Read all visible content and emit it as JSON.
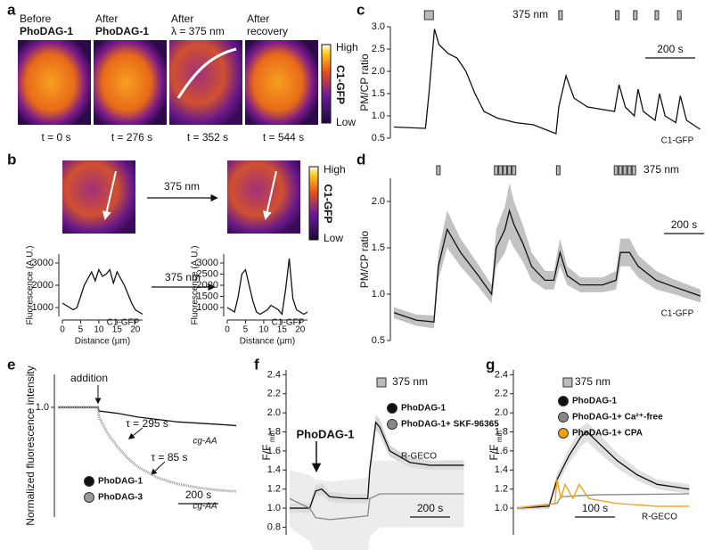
{
  "panel_letters": [
    "a",
    "b",
    "c",
    "d",
    "e",
    "f",
    "g"
  ],
  "panel_a": {
    "captions": [
      [
        "Before",
        "PhoDAG-1"
      ],
      [
        "After",
        "PhoDAG-1"
      ],
      [
        "After",
        "λ = 375 nm"
      ],
      [
        "After",
        "recovery"
      ]
    ],
    "times": [
      "t = 0 s",
      "t = 276 s",
      "t = 352 s",
      "t = 544 s"
    ],
    "colorbar": {
      "high": "High",
      "label": "C1-GFP",
      "low": "Low"
    }
  },
  "panel_b": {
    "arrow_label": "375 nm",
    "colorbar": {
      "high": "High",
      "label": "C1-GFP",
      "low": "Low"
    }
  },
  "chart_data": [
    {
      "type": "line",
      "ylabel": "Fluorescence (A.U.)",
      "xlabel": "Distance (µm)",
      "xlim": [
        0,
        22
      ],
      "xticks": [
        0,
        5,
        10,
        15,
        20
      ],
      "ylim": [
        600,
        3400
      ],
      "yticks": [
        1000,
        2000,
        3000
      ],
      "annotations": [
        "C1-GFP"
      ],
      "series": [
        {
          "color": "#111111",
          "x": [
            0,
            1,
            2,
            3,
            4,
            5,
            6,
            7,
            8,
            9,
            10,
            11,
            12,
            13,
            14,
            15,
            16,
            17,
            18,
            19,
            20,
            21,
            22
          ],
          "values": [
            1200,
            1100,
            1000,
            900,
            1000,
            1500,
            2000,
            2300,
            2600,
            2200,
            2700,
            2400,
            2500,
            2700,
            2100,
            2600,
            2300,
            2000,
            1600,
            1200,
            900,
            800,
            700
          ]
        }
      ]
    },
    {
      "type": "line",
      "ylabel": "Fluorescence (A.U.)",
      "xlabel": "Distance (µm)",
      "xlim": [
        0,
        22
      ],
      "xticks": [
        0,
        5,
        10,
        15,
        20
      ],
      "ylim": [
        600,
        3400
      ],
      "yticks": [
        1000,
        1500,
        2000,
        2500,
        3000
      ],
      "annotations": [
        "C1-GFP"
      ],
      "series": [
        {
          "color": "#111111",
          "x": [
            0,
            1,
            2,
            3,
            4,
            5,
            6,
            7,
            8,
            9,
            10,
            11,
            12,
            13,
            14,
            15,
            16,
            17,
            18,
            19,
            20,
            21,
            22
          ],
          "values": [
            1000,
            900,
            800,
            1500,
            2500,
            2700,
            2000,
            1300,
            800,
            700,
            800,
            900,
            1100,
            1000,
            900,
            700,
            1800,
            3200,
            1400,
            900,
            800,
            700,
            800
          ]
        }
      ]
    },
    {
      "type": "line",
      "ylabel": "PM/CP ratio",
      "xlim": [
        0,
        1240
      ],
      "ylim": [
        0.5,
        3.0
      ],
      "yticks": [
        {
          "value": 3.0,
          "label": "3.0"
        },
        2.5,
        {
          "value": 2.0,
          "label": "2.0"
        },
        1.5,
        {
          "value": 1.0,
          "label": "1.0"
        },
        0.5
      ],
      "stimuli": {
        "label": "375 nm",
        "x": [
          140,
          666,
          893,
          965,
          1051,
          1141
        ]
      },
      "scale_bar": {
        "value": 200,
        "label": "200 s"
      },
      "annotations": [
        "C1-GFP"
      ],
      "series": [
        {
          "color": "#111111",
          "x": [
            0,
            126,
            140,
            162,
            180,
            216,
            252,
            288,
            324,
            360,
            414,
            486,
            558,
            648,
            659,
            688,
            720,
            774,
            882,
            900,
            925,
            961,
            976,
            997,
            1044,
            1062,
            1084,
            1127,
            1145,
            1170,
            1224
          ],
          "values": [
            0.75,
            0.72,
            1.5,
            2.95,
            2.6,
            2.4,
            2.3,
            2.0,
            1.5,
            1.1,
            0.95,
            0.85,
            0.8,
            0.6,
            1.2,
            1.9,
            1.4,
            1.2,
            1.1,
            1.7,
            1.2,
            1.0,
            1.6,
            1.1,
            0.9,
            1.5,
            1.0,
            0.85,
            1.45,
            0.9,
            0.7
          ]
        }
      ]
    },
    {
      "type": "line",
      "ylabel": "PM/CP ratio",
      "xlim": [
        0,
        1550
      ],
      "ylim": [
        0.5,
        2.25
      ],
      "yticks": [
        {
          "value": 2.0,
          "label": "2.0"
        },
        1.5,
        {
          "value": 1.0,
          "label": "1.0"
        },
        0.5
      ],
      "stimuli": {
        "label": "375 nm",
        "x": [
          222,
          511,
          533,
          555,
          577,
          600,
          821,
          1110,
          1132,
          1154,
          1177,
          1199
        ]
      },
      "scale_bar": {
        "value": 200,
        "label": "200 s"
      },
      "annotations": [
        "C1-GFP"
      ],
      "series": [
        {
          "color": "#111111",
          "error_color": "#999999",
          "x": [
            0,
            111,
            200,
            222,
            266,
            333,
            422,
            488,
            511,
            555,
            577,
            600,
            644,
            688,
            755,
            799,
            830,
            866,
            932,
            1043,
            1110,
            1132,
            1177,
            1221,
            1310,
            1399,
            1532
          ],
          "values": [
            0.8,
            0.72,
            0.7,
            1.3,
            1.7,
            1.45,
            1.2,
            1.0,
            1.5,
            1.7,
            1.9,
            1.75,
            1.55,
            1.3,
            1.15,
            1.15,
            1.45,
            1.2,
            1.1,
            1.1,
            1.15,
            1.45,
            1.45,
            1.3,
            1.15,
            1.08,
            0.98
          ],
          "error": [
            0.06,
            0.06,
            0.07,
            0.15,
            0.2,
            0.15,
            0.12,
            0.1,
            0.2,
            0.25,
            0.3,
            0.25,
            0.2,
            0.15,
            0.1,
            0.1,
            0.15,
            0.1,
            0.08,
            0.08,
            0.1,
            0.15,
            0.15,
            0.12,
            0.1,
            0.08,
            0.07
          ]
        }
      ]
    },
    {
      "type": "line",
      "ylabel": "Normalized fluorescence intensity",
      "xlim": [
        0,
        890
      ],
      "ylim": [
        0.1,
        1.27
      ],
      "yticks": [
        {
          "value": 1.0,
          "label": "1.0"
        }
      ],
      "scale_bar": {
        "value": 200,
        "label": "200 s"
      },
      "annotations": [
        "addition",
        "τ = 295 s",
        "τ = 85 s",
        "cg-AA",
        "cg-AA"
      ],
      "series": [
        {
          "name": "PhoDAG-1",
          "color": "#111111",
          "x": [
            0,
            100,
            200,
            205,
            300,
            400,
            500,
            600,
            700,
            800,
            890
          ],
          "values": [
            1.0,
            1.0,
            1.0,
            0.97,
            0.95,
            0.92,
            0.9,
            0.88,
            0.87,
            0.86,
            0.85
          ]
        },
        {
          "name": "PhoDAG-3",
          "color": "#999999",
          "x": [
            0,
            100,
            200,
            205,
            250,
            300,
            350,
            400,
            500,
            600,
            700,
            800,
            890
          ],
          "values": [
            1.0,
            1.0,
            1.0,
            0.92,
            0.78,
            0.67,
            0.58,
            0.51,
            0.42,
            0.37,
            0.34,
            0.32,
            0.31
          ]
        }
      ]
    },
    {
      "type": "line",
      "ylabel": "F/F",
      "ylabel_sub": "min",
      "xlim": [
        0,
        890
      ],
      "ylim": [
        0.72,
        2.45
      ],
      "yticks": [
        2.4,
        2.2,
        {
          "value": 2.0,
          "label": "2.0"
        },
        1.8,
        1.6,
        1.4,
        1.2,
        {
          "value": 1.0,
          "label": "1.0"
        },
        0.8
      ],
      "stimuli": {
        "label": "375 nm",
        "x": [
          445
        ]
      },
      "scale_bar": {
        "value": 200,
        "label": "200 s"
      },
      "annotations": [
        "PhoDAG-1",
        "R-GECO"
      ],
      "series": [
        {
          "name": "PhoDAG-1",
          "color": "#111111",
          "error_color": "#bbbbbb",
          "x": [
            0,
            100,
            130,
            160,
            200,
            300,
            390,
            400,
            430,
            450,
            500,
            600,
            700,
            870
          ],
          "values": [
            1.0,
            1.0,
            1.18,
            1.2,
            1.12,
            1.1,
            1.1,
            1.4,
            1.9,
            1.85,
            1.6,
            1.48,
            1.45,
            1.45
          ],
          "error": [
            0.05,
            0.05,
            0.06,
            0.06,
            0.05,
            0.05,
            0.05,
            0.08,
            0.08,
            0.08,
            0.06,
            0.05,
            0.05,
            0.05
          ]
        },
        {
          "name": "PhoDAG-1+ SKF-96365",
          "color": "#888888",
          "error_color": "#e0e0e0",
          "x": [
            0,
            100,
            130,
            200,
            300,
            390,
            400,
            450,
            600,
            870
          ],
          "values": [
            1.1,
            1.0,
            0.9,
            0.88,
            0.9,
            0.92,
            1.1,
            1.15,
            1.15,
            1.15
          ],
          "error": [
            0.3,
            0.35,
            0.4,
            0.4,
            0.4,
            0.4,
            0.4,
            0.35,
            0.35,
            0.35
          ]
        }
      ]
    },
    {
      "type": "line",
      "ylabel": "F/F",
      "ylabel_sub": "min",
      "xlim": [
        0,
        445
      ],
      "ylim": [
        0.72,
        2.45
      ],
      "yticks": [
        2.4,
        2.2,
        {
          "value": 2.0,
          "label": "2.0"
        },
        1.8,
        1.6,
        1.4,
        1.2,
        {
          "value": 1.0,
          "label": "1.0"
        }
      ],
      "stimuli": {
        "label": "375 nm",
        "x": [
          120
        ]
      },
      "scale_bar": {
        "value": 100,
        "label": "100 s"
      },
      "annotations": [
        "R-GECO"
      ],
      "series": [
        {
          "name": "PhoDAG-1",
          "color": "#111111",
          "error_color": "#cccccc",
          "x": [
            0,
            80,
            100,
            130,
            160,
            175,
            200,
            250,
            300,
            350,
            430
          ],
          "values": [
            1.0,
            1.02,
            1.3,
            1.55,
            1.75,
            1.8,
            1.7,
            1.5,
            1.35,
            1.25,
            1.2
          ],
          "error": [
            0.02,
            0.03,
            0.06,
            0.08,
            0.1,
            0.1,
            0.1,
            0.08,
            0.06,
            0.05,
            0.05
          ]
        },
        {
          "name": "PhoDAG-1+ Ca²⁺-free",
          "color": "#888888",
          "x": [
            0,
            100,
            110,
            200,
            430
          ],
          "values": [
            1.0,
            1.05,
            1.12,
            1.14,
            1.15
          ]
        },
        {
          "name": "PhoDAG-1+ CPA",
          "color": "#f5a00a",
          "x": [
            0,
            95,
            100,
            110,
            120,
            140,
            155,
            180,
            250,
            350,
            430
          ],
          "values": [
            1.0,
            1.05,
            1.3,
            1.1,
            1.25,
            1.1,
            1.25,
            1.1,
            1.05,
            1.02,
            1.02
          ]
        }
      ]
    }
  ]
}
